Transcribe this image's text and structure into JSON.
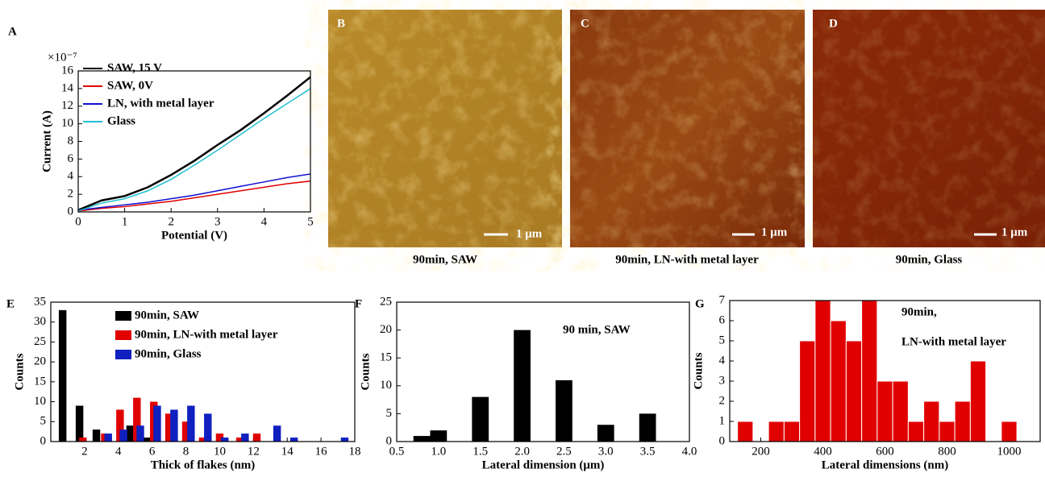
{
  "chart_data": [
    {
      "type": "line",
      "panel_label": "A",
      "y_multiplier": "×10⁻⁷",
      "x_label": "Potential (V)",
      "y_label": "Current (A)",
      "x": [
        0,
        0.5,
        1,
        1.5,
        2,
        2.5,
        3,
        3.5,
        4,
        4.5,
        5
      ],
      "series": [
        {
          "name": "SAW, 15 V",
          "color": "#000000",
          "values": [
            0.2,
            1.3,
            1.8,
            2.8,
            4.2,
            5.8,
            7.6,
            9.3,
            11.2,
            13.2,
            15.3
          ]
        },
        {
          "name": "SAW, 0V",
          "color": "#e00000",
          "values": [
            0.1,
            0.4,
            0.6,
            0.9,
            1.2,
            1.6,
            2.0,
            2.4,
            2.8,
            3.2,
            3.5
          ]
        },
        {
          "name": "LN, with metal layer",
          "color": "#1010d0",
          "values": [
            0.2,
            0.5,
            0.8,
            1.1,
            1.5,
            1.9,
            2.4,
            2.9,
            3.4,
            3.9,
            4.3
          ]
        },
        {
          "name": "Glass",
          "color": "#20c0d0",
          "values": [
            0.1,
            1.0,
            1.5,
            2.4,
            3.7,
            5.3,
            7.0,
            8.8,
            10.6,
            12.3,
            14.0
          ]
        }
      ],
      "xlim": [
        0,
        5
      ],
      "xticks": [
        0,
        1,
        2,
        3,
        4,
        5
      ],
      "ylim": [
        0,
        16
      ],
      "yticks": [
        0,
        2,
        4,
        6,
        8,
        10,
        12,
        14,
        16
      ]
    },
    {
      "type": "bar",
      "panel_label": "E",
      "x_label": "Thick of flakes (nm)",
      "y_label": "Counts",
      "series": [
        {
          "name": "90min, SAW",
          "color": "#000000",
          "x": [
            0.7,
            1.7,
            2.7,
            4.7,
            5.7
          ],
          "values": [
            33,
            9,
            3,
            4,
            1
          ]
        },
        {
          "name": "90min, LN-with metal layer",
          "color": "#e00000",
          "x": [
            1.9,
            3.2,
            4.1,
            5.1,
            6.1,
            7.0,
            8.0,
            9.0,
            10.0,
            11.2,
            12.2
          ],
          "values": [
            1,
            2,
            8,
            11,
            10,
            7,
            5,
            1,
            2,
            1,
            2
          ]
        },
        {
          "name": "90min, Glass",
          "color": "#1020c0",
          "x": [
            3.4,
            4.3,
            5.3,
            6.3,
            7.3,
            8.3,
            9.3,
            10.3,
            11.5,
            13.4,
            14.4,
            17.4
          ],
          "values": [
            2,
            3,
            4,
            9,
            8,
            9,
            7,
            1,
            2,
            4,
            1,
            1
          ]
        }
      ],
      "xlim": [
        0,
        18
      ],
      "xticks": [
        2,
        4,
        6,
        8,
        10,
        12,
        14,
        16,
        18
      ],
      "ylim": [
        0,
        35
      ],
      "yticks": [
        0,
        5,
        10,
        15,
        20,
        25,
        30,
        35
      ]
    },
    {
      "type": "bar",
      "panel_label": "F",
      "x_label": "Lateral dimension (μm)",
      "y_label": "Counts",
      "annotations": [
        "90 min, SAW"
      ],
      "series": [
        {
          "color": "#000000",
          "x": [
            0.8,
            1.0,
            1.5,
            2.0,
            2.5,
            3.0,
            3.5
          ],
          "values": [
            1,
            2,
            8,
            20,
            11,
            3,
            5
          ]
        }
      ],
      "xlim": [
        0.5,
        4.0
      ],
      "xticks": [
        0.5,
        {
          "value": 1,
          "label": "1.0"
        },
        1.5,
        {
          "value": 2,
          "label": "2.0"
        },
        2.5,
        {
          "value": 3,
          "label": "3.0"
        },
        3.5,
        {
          "value": 4,
          "label": "4.0"
        }
      ],
      "ylim": [
        0,
        25
      ],
      "yticks": [
        0,
        5,
        10,
        15,
        20,
        25
      ]
    },
    {
      "type": "histogram",
      "panel_label": "G",
      "x_label": "Lateral dimensions (nm)",
      "y_label": "Counts",
      "annotations": [
        "90min,",
        "LN-with metal layer"
      ],
      "color": "#e00000",
      "bins": [
        125,
        175,
        225,
        275,
        325,
        375,
        425,
        475,
        525,
        575,
        625,
        675,
        725,
        775,
        825,
        875,
        925,
        975,
        1025
      ],
      "values": [
        1,
        0,
        1,
        1,
        5,
        7,
        6,
        5,
        7,
        3,
        3,
        1,
        2,
        1,
        2,
        4,
        0,
        1
      ],
      "xlim": [
        100,
        1100
      ],
      "xticks": [
        200,
        400,
        600,
        800,
        1000
      ],
      "ylim": [
        0,
        7
      ],
      "yticks": [
        0,
        1,
        2,
        3,
        4,
        5,
        6,
        7
      ]
    }
  ],
  "images": [
    {
      "label": "B",
      "scale": "1 μm",
      "caption": "90min, SAW"
    },
    {
      "label": "C",
      "scale": "1 μm",
      "caption": "90min, LN-with metal layer"
    },
    {
      "label": "D",
      "scale": "1 μm",
      "caption": "90min, Glass"
    }
  ]
}
